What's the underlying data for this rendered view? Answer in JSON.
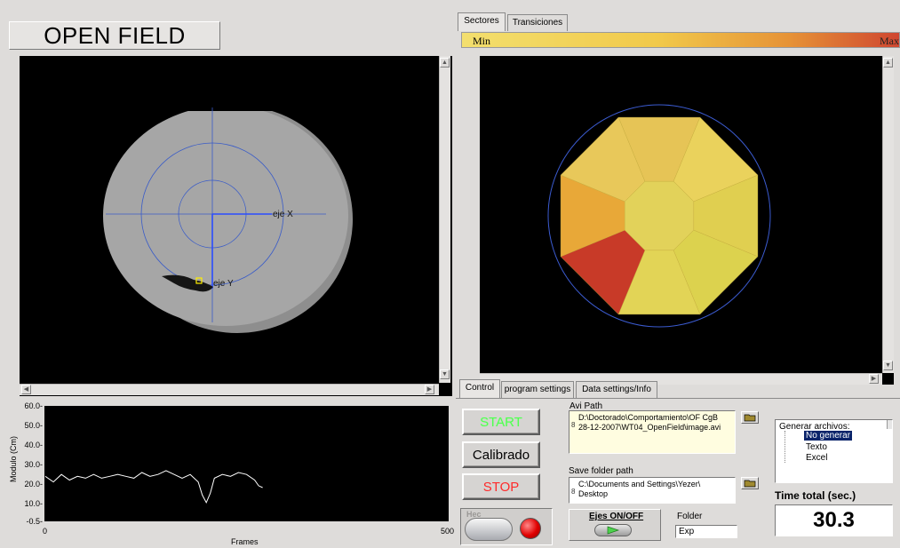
{
  "window": {
    "title": "OPEN FIELD"
  },
  "video": {
    "axis_x_label": "eje X",
    "axis_y_label": "eje Y"
  },
  "right_tabs": [
    {
      "label": "Sectores",
      "active": true
    },
    {
      "label": "Transiciones",
      "active": false
    }
  ],
  "heatmap": {
    "min_label": "Min",
    "max_label": "Max",
    "colors": {
      "low": "#f0d860",
      "mid": "#e8a838",
      "high": "#c83a28"
    }
  },
  "graph": {
    "ylabel": "Modulo (Cm)",
    "xlabel": "Frames",
    "y_ticks": [
      "60.0-",
      "50.0-",
      "40.0-",
      "30.0-",
      "20.0-",
      "10.0-",
      "-0.5-"
    ],
    "x_ticks": [
      "0",
      "500"
    ]
  },
  "chart_data": {
    "type": "line",
    "xlabel": "Frames",
    "ylabel": "Modulo (Cm)",
    "xlim": [
      0,
      500
    ],
    "ylim": [
      -0.5,
      60
    ],
    "x": [
      0,
      10,
      20,
      30,
      40,
      50,
      60,
      70,
      80,
      90,
      100,
      110,
      120,
      130,
      140,
      150,
      160,
      170,
      180,
      190,
      195,
      200,
      205,
      210,
      220,
      230,
      240,
      250,
      260,
      265,
      270
    ],
    "series": [
      {
        "values": [
          23,
          20,
          24,
          21,
          23,
          22,
          24,
          22,
          23,
          24,
          23,
          22,
          25,
          23,
          24,
          26,
          24,
          22,
          24,
          20,
          13,
          9,
          14,
          22,
          24,
          23,
          25,
          24,
          21,
          18,
          17
        ]
      }
    ]
  },
  "bottom_tabs": [
    {
      "label": "Control",
      "active": true
    },
    {
      "label": "program settings",
      "active": false
    },
    {
      "label": "Data settings/Info",
      "active": false
    }
  ],
  "controls": {
    "start_label": "START",
    "calibrado_label": "Calibrado",
    "stop_label": "STOP",
    "hec_label": "Hec",
    "avi_path_label": "Avi Path",
    "avi_path_line1": "D:\\Doctorado\\Comportamiento\\OF CgB",
    "avi_path_line2": "28-12-2007\\WT04_OpenField\\image.avi",
    "save_folder_label": "Save folder path",
    "save_folder_line1": "C:\\Documents and Settings\\Yezer\\",
    "save_folder_line2": "Desktop",
    "path_prefix": "8",
    "ejes_label": "Ejes ON/OFF",
    "folder_label": "Folder",
    "folder_value": "Exp"
  },
  "generar": {
    "title": "Generar archivos:",
    "options": [
      {
        "label": "No generar",
        "selected": true
      },
      {
        "label": "Texto",
        "selected": false
      },
      {
        "label": "Excel",
        "selected": false
      }
    ]
  },
  "time_total": {
    "label": "Time total (sec.)",
    "value": "30.3"
  }
}
